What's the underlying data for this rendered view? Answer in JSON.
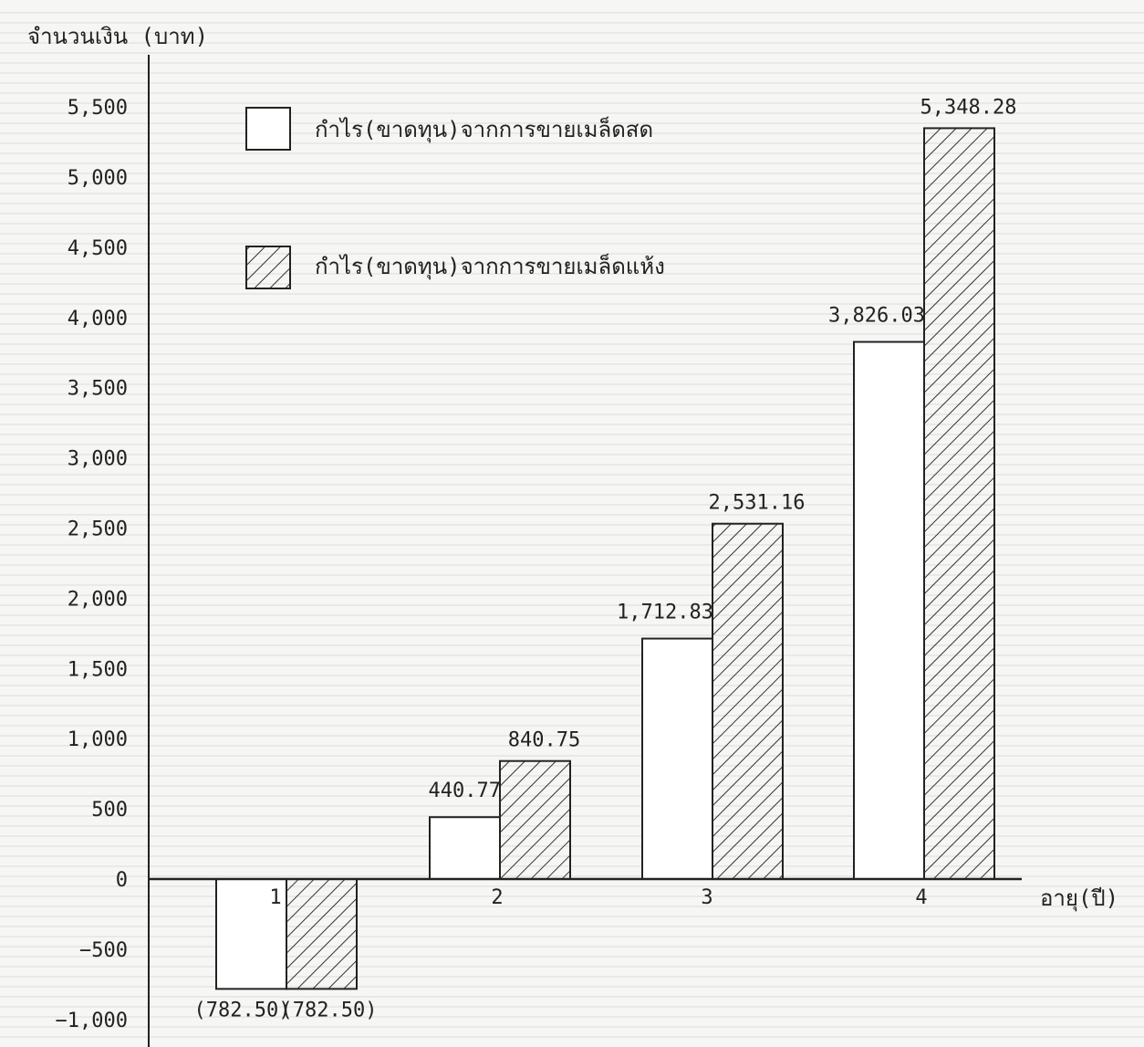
{
  "chart_data": {
    "type": "bar",
    "ylabel": "จำนวนเงิน (บาท)",
    "xlabel": "อายุ(ปี)",
    "categories": [
      "1",
      "2",
      "3",
      "4"
    ],
    "series": [
      {
        "name": "กำไร(ขาดทุน)จากการขายเมล็ดสด",
        "values": [
          -782.5,
          440.77,
          1712.83,
          3826.03
        ],
        "labels": [
          "(782.50)",
          "440.77",
          "1,712.83",
          "3,826.03"
        ],
        "pattern": "none"
      },
      {
        "name": "กำไร(ขาดทุน)จากการขายเมล็ดแห้ง",
        "values": [
          -782.5,
          840.75,
          2531.16,
          5348.28
        ],
        "labels": [
          "(782.50)",
          "840.75",
          "2,531.16",
          "5,348.28"
        ],
        "pattern": "hatched"
      }
    ],
    "yticks": [
      -1000,
      -500,
      0,
      500,
      1000,
      1500,
      2000,
      2500,
      3000,
      3500,
      4000,
      4500,
      5000,
      5500
    ],
    "ytick_labels": [
      "−1,000",
      "−500",
      "0",
      "500",
      "1,000",
      "1,500",
      "2,000",
      "2,500",
      "3,000",
      "3,500",
      "4,000",
      "4,500",
      "5,000",
      "5,500"
    ],
    "ylim": [
      -1150,
      6200
    ],
    "grid": true,
    "legend_position": "top-left"
  }
}
